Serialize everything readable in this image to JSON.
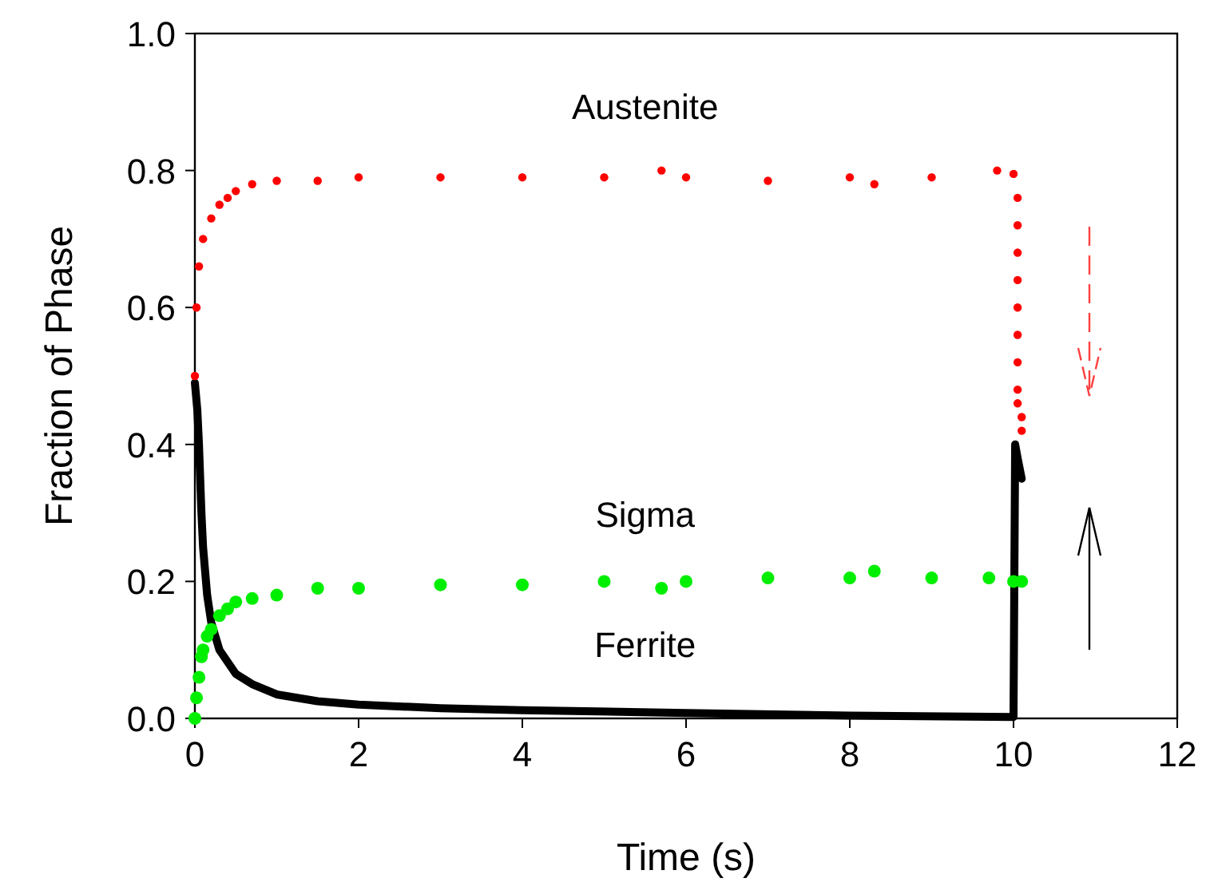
{
  "chart_data": {
    "type": "line",
    "xlabel": "Time (s)",
    "ylabel": "Fraction of Phase",
    "xlim": [
      0,
      12
    ],
    "ylim": [
      0,
      1
    ],
    "xticks": [
      0,
      2,
      4,
      6,
      8,
      10,
      12
    ],
    "yticks": [
      {
        "value": 0,
        "label": "0.0"
      },
      {
        "value": 0.2,
        "label": "0.2"
      },
      {
        "value": 0.4,
        "label": "0.4"
      },
      {
        "value": 0.6,
        "label": "0.6"
      },
      {
        "value": 0.8,
        "label": "0.8"
      },
      {
        "value": 1,
        "label": "1.0"
      }
    ],
    "grid": false,
    "series": [
      {
        "name": "Austenite",
        "type": "scatter",
        "marker": "circle",
        "color": "#ff0000",
        "x": [
          0,
          0.02,
          0.05,
          0.1,
          0.2,
          0.3,
          0.4,
          0.5,
          0.7,
          1,
          1.5,
          2,
          3,
          4,
          5,
          5.7,
          6,
          7,
          8,
          8.3,
          9,
          9.8,
          10,
          10.05,
          10.05,
          10.05,
          10.05,
          10.05,
          10.05,
          10.05,
          10.05,
          10.05,
          10.1,
          10.1
        ],
        "values": [
          0.5,
          0.6,
          0.66,
          0.7,
          0.73,
          0.75,
          0.76,
          0.77,
          0.78,
          0.785,
          0.785,
          0.79,
          0.79,
          0.79,
          0.79,
          0.8,
          0.79,
          0.785,
          0.79,
          0.78,
          0.79,
          0.8,
          0.795,
          0.76,
          0.72,
          0.68,
          0.64,
          0.6,
          0.56,
          0.52,
          0.48,
          0.46,
          0.44,
          0.42
        ]
      },
      {
        "name": "Sigma",
        "type": "scatter",
        "marker": "circle",
        "color": "#00ee00",
        "x": [
          0,
          0.02,
          0.05,
          0.08,
          0.1,
          0.15,
          0.2,
          0.3,
          0.4,
          0.5,
          0.7,
          1,
          1.5,
          2,
          3,
          4,
          5,
          5.7,
          6,
          7,
          8,
          8.3,
          9,
          9.7,
          10,
          10.1
        ],
        "values": [
          0,
          0.03,
          0.06,
          0.09,
          0.1,
          0.12,
          0.13,
          0.15,
          0.16,
          0.17,
          0.175,
          0.18,
          0.19,
          0.19,
          0.195,
          0.195,
          0.2,
          0.19,
          0.2,
          0.205,
          0.205,
          0.215,
          0.205,
          0.205,
          0.2,
          0.2
        ]
      },
      {
        "name": "Ferrite",
        "color": "#000000",
        "x": [
          0,
          0.03,
          0.05,
          0.08,
          0.1,
          0.15,
          0.2,
          0.3,
          0.5,
          0.7,
          1,
          1.5,
          2,
          3,
          4,
          6,
          8,
          10,
          10.02,
          10.05,
          10.1
        ],
        "values": [
          0.49,
          0.45,
          0.4,
          0.3,
          0.25,
          0.18,
          0.14,
          0.1,
          0.065,
          0.05,
          0.035,
          0.025,
          0.02,
          0.015,
          0.012,
          0.008,
          0.004,
          0.002,
          0.4,
          0.38,
          0.35
        ]
      }
    ]
  }
}
